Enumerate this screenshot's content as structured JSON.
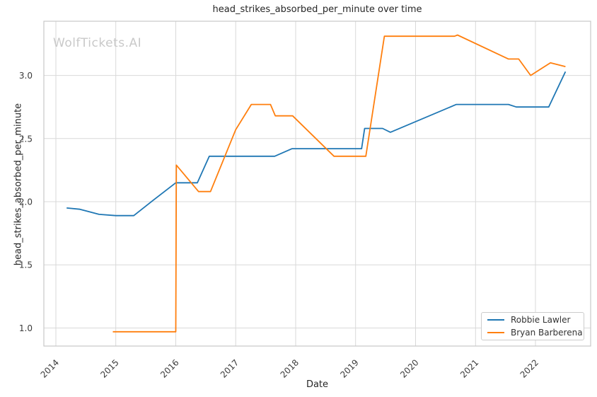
{
  "page": {
    "background_color": "#ffffff",
    "watermark": "WolfTickets.AI",
    "watermark_color": "#c9c9c9"
  },
  "chart_data": {
    "type": "line",
    "title": "head_strikes_absorbed_per_minute over time",
    "xlabel": "Date",
    "ylabel": "head_strikes_absorbed_per_minute",
    "x_ticks": [
      "2014",
      "2015",
      "2016",
      "2017",
      "2018",
      "2019",
      "2020",
      "2021",
      "2022"
    ],
    "y_ticks": [
      "1.0",
      "1.5",
      "2.0",
      "2.5",
      "3.0"
    ],
    "xlim": [
      2013.8,
      2022.92
    ],
    "ylim": [
      0.857,
      3.429
    ],
    "grid": true,
    "grid_color": "#d9d9d9",
    "spine_color": "#c7c7c7",
    "tick_color": "#3b3b3b",
    "legend_position": "lower right",
    "series": [
      {
        "name": "Robbie Lawler",
        "color": "#1f77b4",
        "points": [
          [
            2014.18,
            1.95
          ],
          [
            2014.4,
            1.94
          ],
          [
            2014.72,
            1.9
          ],
          [
            2015.0,
            1.89
          ],
          [
            2015.3,
            1.89
          ],
          [
            2015.62,
            2.01
          ],
          [
            2016.0,
            2.15
          ],
          [
            2016.36,
            2.15
          ],
          [
            2016.56,
            2.36
          ],
          [
            2017.65,
            2.36
          ],
          [
            2017.94,
            2.42
          ],
          [
            2019.1,
            2.42
          ],
          [
            2019.15,
            2.58
          ],
          [
            2019.45,
            2.58
          ],
          [
            2019.58,
            2.55
          ],
          [
            2020.68,
            2.77
          ],
          [
            2021.55,
            2.77
          ],
          [
            2021.68,
            2.75
          ],
          [
            2022.22,
            2.75
          ],
          [
            2022.5,
            3.03
          ]
        ]
      },
      {
        "name": "Bryan Barberena",
        "color": "#ff7f0e",
        "points": [
          [
            2014.95,
            0.97
          ],
          [
            2016.0,
            0.97
          ],
          [
            2016.01,
            2.29
          ],
          [
            2016.38,
            2.08
          ],
          [
            2016.58,
            2.08
          ],
          [
            2017.0,
            2.57
          ],
          [
            2017.26,
            2.77
          ],
          [
            2017.58,
            2.77
          ],
          [
            2017.66,
            2.68
          ],
          [
            2017.95,
            2.68
          ],
          [
            2018.64,
            2.36
          ],
          [
            2019.17,
            2.36
          ],
          [
            2019.48,
            3.31
          ],
          [
            2020.65,
            3.31
          ],
          [
            2020.7,
            3.32
          ],
          [
            2021.55,
            3.13
          ],
          [
            2021.72,
            3.13
          ],
          [
            2021.92,
            3.0
          ],
          [
            2022.25,
            3.1
          ],
          [
            2022.5,
            3.07
          ]
        ]
      }
    ]
  }
}
